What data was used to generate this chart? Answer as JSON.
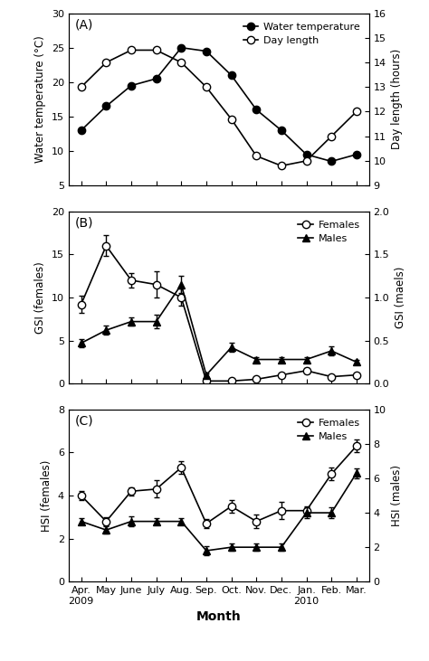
{
  "months_short": [
    "Apr.",
    "May",
    "June",
    "July",
    "Aug.",
    "Sep.",
    "Oct.",
    "Nov.",
    "Dec.",
    "Jan.",
    "Feb.",
    "Mar."
  ],
  "panel_A": {
    "water_temp": [
      13,
      16.5,
      19.5,
      20.5,
      25,
      24.5,
      21,
      16,
      13,
      9.5,
      8.5,
      9.5
    ],
    "day_length": [
      13,
      14,
      14.5,
      14.5,
      14,
      13,
      11.7,
      10.2,
      9.8,
      10,
      11,
      12
    ],
    "ylim_left": [
      5,
      30
    ],
    "ylim_right": [
      9,
      16
    ],
    "yticks_left": [
      5,
      10,
      15,
      20,
      25,
      30
    ],
    "yticks_right": [
      9,
      10,
      11,
      12,
      13,
      14,
      15,
      16
    ],
    "ylabel_left": "Water temperature (°C)",
    "ylabel_right": "Day length (hours)",
    "label": "(A)"
  },
  "panel_B": {
    "females": [
      9.2,
      16.0,
      12.0,
      11.5,
      10.0,
      0.3,
      0.3,
      0.5,
      1.0,
      1.5,
      0.8,
      1.0
    ],
    "females_err": [
      1.0,
      1.2,
      0.8,
      1.5,
      1.0,
      0.1,
      0.1,
      0.2,
      0.2,
      0.3,
      0.15,
      0.2
    ],
    "males": [
      0.47,
      0.62,
      0.72,
      0.72,
      1.15,
      0.1,
      0.42,
      0.28,
      0.28,
      0.28,
      0.38,
      0.25
    ],
    "males_err": [
      0.05,
      0.05,
      0.05,
      0.08,
      0.1,
      0.02,
      0.05,
      0.03,
      0.03,
      0.03,
      0.05,
      0.03
    ],
    "ylim_left": [
      0,
      20
    ],
    "ylim_right": [
      0.0,
      2.0
    ],
    "yticks_left": [
      0,
      5,
      10,
      15,
      20
    ],
    "yticks_right": [
      0.0,
      0.5,
      1.0,
      1.5,
      2.0
    ],
    "ylabel_left": "GSI (females)",
    "ylabel_right": "GSI (maels)",
    "label": "(B)"
  },
  "panel_C": {
    "females": [
      4.0,
      2.8,
      4.2,
      4.3,
      5.3,
      2.7,
      3.5,
      2.8,
      3.3,
      3.3,
      5.0,
      6.3
    ],
    "females_err": [
      0.2,
      0.2,
      0.2,
      0.4,
      0.3,
      0.2,
      0.3,
      0.3,
      0.4,
      0.2,
      0.3,
      0.3
    ],
    "males": [
      3.5,
      3.0,
      3.5,
      3.5,
      3.5,
      1.8,
      2.0,
      2.0,
      2.0,
      4.0,
      4.0,
      6.3
    ],
    "males_err": [
      0.2,
      0.2,
      0.3,
      0.2,
      0.2,
      0.25,
      0.2,
      0.2,
      0.2,
      0.3,
      0.3,
      0.3
    ],
    "ylim_left": [
      0,
      8
    ],
    "ylim_right": [
      0,
      10
    ],
    "yticks_left": [
      0,
      2,
      4,
      6,
      8
    ],
    "yticks_right": [
      0,
      2,
      4,
      6,
      8,
      10
    ],
    "ylabel_left": "HSI (females)",
    "ylabel_right": "HSI (males)",
    "label": "(C)"
  },
  "xlabel": "Month"
}
